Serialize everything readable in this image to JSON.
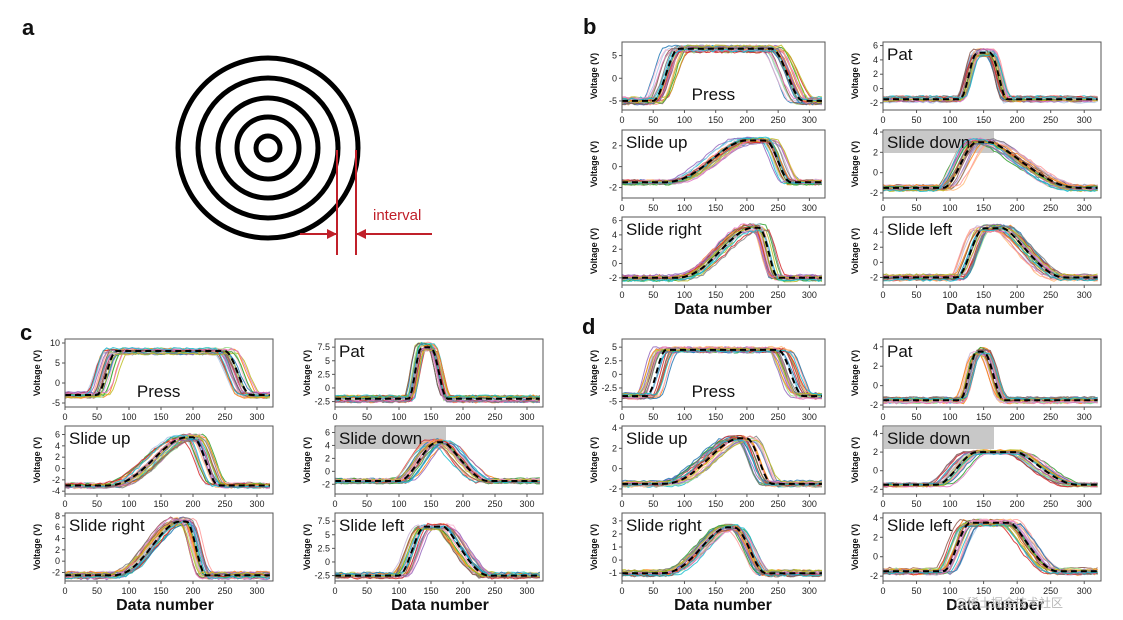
{
  "panel_a": {
    "letter": "a",
    "interval_label": "interval"
  },
  "watermark": "@稀土掘金技术社区",
  "chart_data": [
    {
      "panel": "b",
      "type": "line",
      "ylabel": "Voltage (V)",
      "xlabel": "Data number",
      "subplots": [
        {
          "gesture": "Press",
          "label_pos": "bottom-center",
          "highlight": false,
          "ylim": [
            -7,
            8
          ],
          "yticks": [
            -5,
            0,
            5
          ],
          "base": -5,
          "peak": 6.5,
          "rise": [
            50,
            90
          ],
          "fall": [
            240,
            290
          ],
          "shape": "plateau",
          "spread": 40
        },
        {
          "gesture": "Pat",
          "label_pos": "top-left",
          "highlight": false,
          "ylim": [
            -3,
            6.5
          ],
          "yticks": [
            -2,
            0,
            2,
            4,
            6
          ],
          "base": -1.5,
          "peak": 5,
          "rise": [
            115,
            140
          ],
          "fall": [
            160,
            185
          ],
          "shape": "pulse",
          "spread": 15
        },
        {
          "gesture": "Slide up",
          "label_pos": "top-left",
          "highlight": false,
          "ylim": [
            -3,
            3.5
          ],
          "yticks": [
            -2,
            0,
            2
          ],
          "base": -1.5,
          "peak": 2.5,
          "rise": [
            60,
            200
          ],
          "fall": [
            230,
            270
          ],
          "shape": "ramp-up",
          "spread": 35
        },
        {
          "gesture": "Slide down",
          "label_pos": "top-left",
          "highlight": true,
          "ylim": [
            -2.5,
            4.2
          ],
          "yticks": [
            -2,
            0,
            2,
            4
          ],
          "base": -1.5,
          "peak": 3,
          "rise": [
            90,
            140
          ],
          "fall": [
            160,
            290
          ],
          "shape": "ramp-down",
          "spread": 35
        },
        {
          "gesture": "Slide right",
          "label_pos": "top-left",
          "highlight": false,
          "ylim": [
            -3,
            6.5
          ],
          "yticks": [
            -2,
            0,
            2,
            4,
            6
          ],
          "base": -2,
          "peak": 5,
          "rise": [
            80,
            210
          ],
          "fall": [
            220,
            250
          ],
          "shape": "ramp-up",
          "spread": 25
        },
        {
          "gesture": "Slide left",
          "label_pos": "top-left",
          "highlight": false,
          "ylim": [
            -3,
            6
          ],
          "yticks": [
            -2,
            0,
            2,
            4
          ],
          "base": -2,
          "peak": 4.5,
          "rise": [
            110,
            150
          ],
          "fall": [
            180,
            270
          ],
          "shape": "ramp-down",
          "spread": 30
        }
      ]
    },
    {
      "panel": "c",
      "type": "line",
      "ylabel": "Voltage (V)",
      "xlabel": "Data number",
      "subplots": [
        {
          "gesture": "Press",
          "label_pos": "bottom-center",
          "highlight": false,
          "ylim": [
            -6,
            11
          ],
          "yticks": [
            -5,
            0,
            5,
            10
          ],
          "base": -3,
          "peak": 8,
          "rise": [
            50,
            80
          ],
          "fall": [
            250,
            290
          ],
          "shape": "plateau",
          "spread": 40
        },
        {
          "gesture": "Pat",
          "label_pos": "top-left",
          "highlight": false,
          "ylim": [
            -3.5,
            9
          ],
          "yticks": [
            -2.5,
            0.0,
            2.5,
            5.0,
            7.5
          ],
          "base": -2,
          "peak": 7.5,
          "rise": [
            115,
            135
          ],
          "fall": [
            150,
            175
          ],
          "shape": "pulse",
          "spread": 15
        },
        {
          "gesture": "Slide up",
          "label_pos": "top-left",
          "highlight": false,
          "ylim": [
            -4.5,
            7.5
          ],
          "yticks": [
            -4,
            -2,
            0,
            2,
            4,
            6
          ],
          "base": -3,
          "peak": 5.5,
          "rise": [
            60,
            190
          ],
          "fall": [
            200,
            240
          ],
          "shape": "ramp-up",
          "spread": 35
        },
        {
          "gesture": "Slide down",
          "label_pos": "top-left",
          "highlight": true,
          "ylim": [
            -3.5,
            7
          ],
          "yticks": [
            -2,
            0,
            2,
            4,
            6
          ],
          "base": -1.5,
          "peak": 4.5,
          "rise": [
            100,
            160
          ],
          "fall": [
            170,
            240
          ],
          "shape": "ramp-down",
          "spread": 35
        },
        {
          "gesture": "Slide right",
          "label_pos": "top-left",
          "highlight": false,
          "ylim": [
            -3.5,
            8.5
          ],
          "yticks": [
            -2,
            0,
            2,
            4,
            6,
            8
          ],
          "base": -2.5,
          "peak": 7,
          "rise": [
            70,
            180
          ],
          "fall": [
            190,
            220
          ],
          "shape": "ramp-up",
          "spread": 25
        },
        {
          "gesture": "Slide left",
          "label_pos": "top-left",
          "highlight": false,
          "ylim": [
            -3.5,
            9
          ],
          "yticks": [
            -2.5,
            0.0,
            2.5,
            5.0,
            7.5
          ],
          "base": -2.5,
          "peak": 6.5,
          "rise": [
            100,
            140
          ],
          "fall": [
            170,
            240
          ],
          "shape": "ramp-down",
          "spread": 30
        }
      ]
    },
    {
      "panel": "d",
      "type": "line",
      "ylabel": "Voltage (V)",
      "xlabel": "Data number",
      "subplots": [
        {
          "gesture": "Press",
          "label_pos": "bottom-center",
          "highlight": false,
          "ylim": [
            -6,
            6.5
          ],
          "yticks": [
            -5.0,
            -2.5,
            0.0,
            2.5,
            5.0
          ],
          "base": -4,
          "peak": 4.5,
          "rise": [
            40,
            70
          ],
          "fall": [
            250,
            290
          ],
          "shape": "plateau",
          "spread": 40
        },
        {
          "gesture": "Pat",
          "label_pos": "top-left",
          "highlight": false,
          "ylim": [
            -2.2,
            4.8
          ],
          "yticks": [
            -2,
            0,
            2,
            4
          ],
          "base": -1.5,
          "peak": 3.5,
          "rise": [
            115,
            140
          ],
          "fall": [
            150,
            180
          ],
          "shape": "pulse",
          "spread": 15
        },
        {
          "gesture": "Slide up",
          "label_pos": "top-left",
          "highlight": false,
          "ylim": [
            -2.5,
            4.2
          ],
          "yticks": [
            -2,
            0,
            2,
            4
          ],
          "base": -1.5,
          "peak": 3,
          "rise": [
            60,
            190
          ],
          "fall": [
            200,
            240
          ],
          "shape": "ramp-up",
          "spread": 35
        },
        {
          "gesture": "Slide down",
          "label_pos": "top-left",
          "highlight": true,
          "ylim": [
            -2.5,
            4.8
          ],
          "yticks": [
            -2,
            0,
            2,
            4
          ],
          "base": -1.5,
          "peak": 2,
          "rise": [
            80,
            140
          ],
          "fall": [
            200,
            290
          ],
          "shape": "ramp-down",
          "spread": 35
        },
        {
          "gesture": "Slide right",
          "label_pos": "top-left",
          "highlight": false,
          "ylim": [
            -1.6,
            3.6
          ],
          "yticks": [
            -1,
            0,
            1,
            2,
            3
          ],
          "base": -1,
          "peak": 2.5,
          "rise": [
            60,
            170
          ],
          "fall": [
            180,
            230
          ],
          "shape": "ramp-up",
          "spread": 25
        },
        {
          "gesture": "Slide left",
          "label_pos": "top-left",
          "highlight": false,
          "ylim": [
            -2.5,
            4.5
          ],
          "yticks": [
            -2,
            0,
            2,
            4
          ],
          "base": -1.5,
          "peak": 3.5,
          "rise": [
            90,
            130
          ],
          "fall": [
            190,
            260
          ],
          "shape": "ramp-down",
          "spread": 30
        }
      ]
    }
  ],
  "shared_x": {
    "xlim": [
      0,
      325
    ],
    "xticks": [
      0,
      50,
      100,
      150,
      200,
      250,
      300
    ]
  }
}
